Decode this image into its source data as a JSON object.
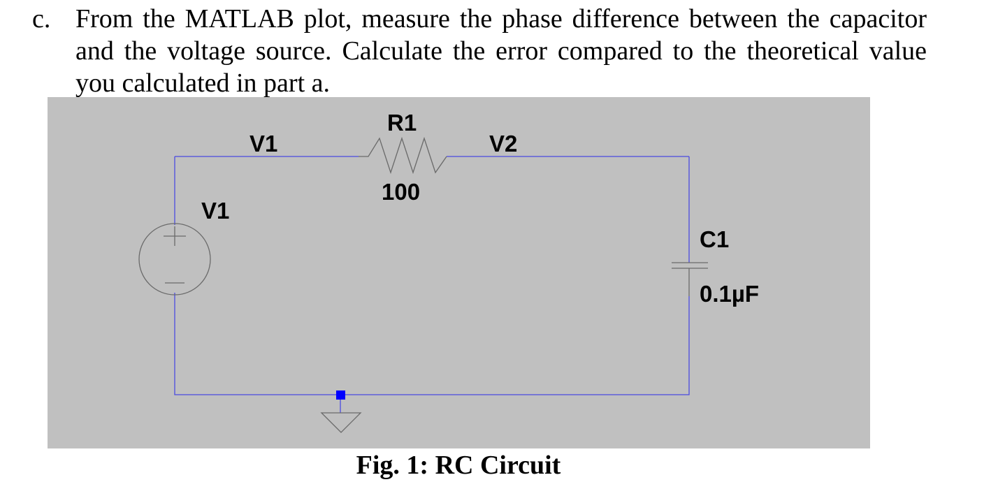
{
  "question": {
    "marker": "c.",
    "text": "From the MATLAB plot, measure the phase difference between the capacitor and the voltage source. Calculate the error compared to the theoretical value you calculated in part a."
  },
  "schematic": {
    "background": "#c0c0c0",
    "wire_color": "#4a4ae0",
    "ground_marker_color": "#0000ff",
    "labels": {
      "net_left": "V1",
      "net_right": "V2",
      "resistor_name": "R1",
      "resistor_value": "100",
      "source_name": "V1",
      "capacitor_name": "C1",
      "capacitor_value": "0.1µF"
    }
  },
  "caption": "Fig. 1: RC Circuit"
}
